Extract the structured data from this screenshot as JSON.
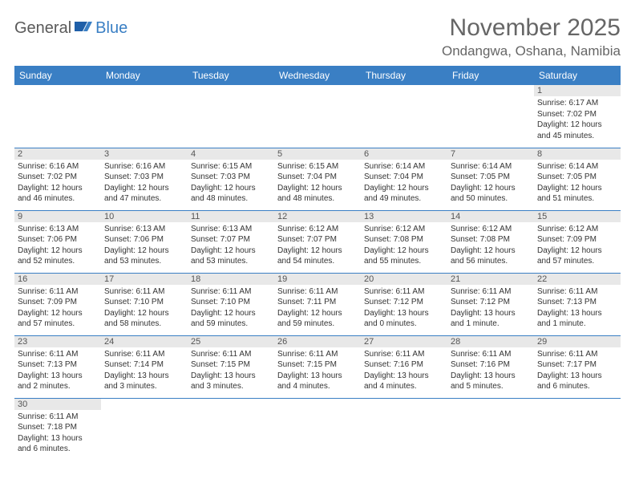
{
  "logo": {
    "part1": "General",
    "part2": "Blue"
  },
  "title": "November 2025",
  "location": "Ondangwa, Oshana, Namibia",
  "colors": {
    "header_bg": "#3a7fc4",
    "header_text": "#ffffff",
    "daynum_bg": "#e8e8e8",
    "border": "#3a7fc4",
    "title_color": "#666666",
    "body_text": "#333333"
  },
  "day_headers": [
    "Sunday",
    "Monday",
    "Tuesday",
    "Wednesday",
    "Thursday",
    "Friday",
    "Saturday"
  ],
  "weeks": [
    [
      {
        "n": "",
        "sr": "",
        "ss": "",
        "dl": ""
      },
      {
        "n": "",
        "sr": "",
        "ss": "",
        "dl": ""
      },
      {
        "n": "",
        "sr": "",
        "ss": "",
        "dl": ""
      },
      {
        "n": "",
        "sr": "",
        "ss": "",
        "dl": ""
      },
      {
        "n": "",
        "sr": "",
        "ss": "",
        "dl": ""
      },
      {
        "n": "",
        "sr": "",
        "ss": "",
        "dl": ""
      },
      {
        "n": "1",
        "sr": "Sunrise: 6:17 AM",
        "ss": "Sunset: 7:02 PM",
        "dl": "Daylight: 12 hours and 45 minutes."
      }
    ],
    [
      {
        "n": "2",
        "sr": "Sunrise: 6:16 AM",
        "ss": "Sunset: 7:02 PM",
        "dl": "Daylight: 12 hours and 46 minutes."
      },
      {
        "n": "3",
        "sr": "Sunrise: 6:16 AM",
        "ss": "Sunset: 7:03 PM",
        "dl": "Daylight: 12 hours and 47 minutes."
      },
      {
        "n": "4",
        "sr": "Sunrise: 6:15 AM",
        "ss": "Sunset: 7:03 PM",
        "dl": "Daylight: 12 hours and 48 minutes."
      },
      {
        "n": "5",
        "sr": "Sunrise: 6:15 AM",
        "ss": "Sunset: 7:04 PM",
        "dl": "Daylight: 12 hours and 48 minutes."
      },
      {
        "n": "6",
        "sr": "Sunrise: 6:14 AM",
        "ss": "Sunset: 7:04 PM",
        "dl": "Daylight: 12 hours and 49 minutes."
      },
      {
        "n": "7",
        "sr": "Sunrise: 6:14 AM",
        "ss": "Sunset: 7:05 PM",
        "dl": "Daylight: 12 hours and 50 minutes."
      },
      {
        "n": "8",
        "sr": "Sunrise: 6:14 AM",
        "ss": "Sunset: 7:05 PM",
        "dl": "Daylight: 12 hours and 51 minutes."
      }
    ],
    [
      {
        "n": "9",
        "sr": "Sunrise: 6:13 AM",
        "ss": "Sunset: 7:06 PM",
        "dl": "Daylight: 12 hours and 52 minutes."
      },
      {
        "n": "10",
        "sr": "Sunrise: 6:13 AM",
        "ss": "Sunset: 7:06 PM",
        "dl": "Daylight: 12 hours and 53 minutes."
      },
      {
        "n": "11",
        "sr": "Sunrise: 6:13 AM",
        "ss": "Sunset: 7:07 PM",
        "dl": "Daylight: 12 hours and 53 minutes."
      },
      {
        "n": "12",
        "sr": "Sunrise: 6:12 AM",
        "ss": "Sunset: 7:07 PM",
        "dl": "Daylight: 12 hours and 54 minutes."
      },
      {
        "n": "13",
        "sr": "Sunrise: 6:12 AM",
        "ss": "Sunset: 7:08 PM",
        "dl": "Daylight: 12 hours and 55 minutes."
      },
      {
        "n": "14",
        "sr": "Sunrise: 6:12 AM",
        "ss": "Sunset: 7:08 PM",
        "dl": "Daylight: 12 hours and 56 minutes."
      },
      {
        "n": "15",
        "sr": "Sunrise: 6:12 AM",
        "ss": "Sunset: 7:09 PM",
        "dl": "Daylight: 12 hours and 57 minutes."
      }
    ],
    [
      {
        "n": "16",
        "sr": "Sunrise: 6:11 AM",
        "ss": "Sunset: 7:09 PM",
        "dl": "Daylight: 12 hours and 57 minutes."
      },
      {
        "n": "17",
        "sr": "Sunrise: 6:11 AM",
        "ss": "Sunset: 7:10 PM",
        "dl": "Daylight: 12 hours and 58 minutes."
      },
      {
        "n": "18",
        "sr": "Sunrise: 6:11 AM",
        "ss": "Sunset: 7:10 PM",
        "dl": "Daylight: 12 hours and 59 minutes."
      },
      {
        "n": "19",
        "sr": "Sunrise: 6:11 AM",
        "ss": "Sunset: 7:11 PM",
        "dl": "Daylight: 12 hours and 59 minutes."
      },
      {
        "n": "20",
        "sr": "Sunrise: 6:11 AM",
        "ss": "Sunset: 7:12 PM",
        "dl": "Daylight: 13 hours and 0 minutes."
      },
      {
        "n": "21",
        "sr": "Sunrise: 6:11 AM",
        "ss": "Sunset: 7:12 PM",
        "dl": "Daylight: 13 hours and 1 minute."
      },
      {
        "n": "22",
        "sr": "Sunrise: 6:11 AM",
        "ss": "Sunset: 7:13 PM",
        "dl": "Daylight: 13 hours and 1 minute."
      }
    ],
    [
      {
        "n": "23",
        "sr": "Sunrise: 6:11 AM",
        "ss": "Sunset: 7:13 PM",
        "dl": "Daylight: 13 hours and 2 minutes."
      },
      {
        "n": "24",
        "sr": "Sunrise: 6:11 AM",
        "ss": "Sunset: 7:14 PM",
        "dl": "Daylight: 13 hours and 3 minutes."
      },
      {
        "n": "25",
        "sr": "Sunrise: 6:11 AM",
        "ss": "Sunset: 7:15 PM",
        "dl": "Daylight: 13 hours and 3 minutes."
      },
      {
        "n": "26",
        "sr": "Sunrise: 6:11 AM",
        "ss": "Sunset: 7:15 PM",
        "dl": "Daylight: 13 hours and 4 minutes."
      },
      {
        "n": "27",
        "sr": "Sunrise: 6:11 AM",
        "ss": "Sunset: 7:16 PM",
        "dl": "Daylight: 13 hours and 4 minutes."
      },
      {
        "n": "28",
        "sr": "Sunrise: 6:11 AM",
        "ss": "Sunset: 7:16 PM",
        "dl": "Daylight: 13 hours and 5 minutes."
      },
      {
        "n": "29",
        "sr": "Sunrise: 6:11 AM",
        "ss": "Sunset: 7:17 PM",
        "dl": "Daylight: 13 hours and 6 minutes."
      }
    ],
    [
      {
        "n": "30",
        "sr": "Sunrise: 6:11 AM",
        "ss": "Sunset: 7:18 PM",
        "dl": "Daylight: 13 hours and 6 minutes."
      },
      {
        "n": "",
        "sr": "",
        "ss": "",
        "dl": ""
      },
      {
        "n": "",
        "sr": "",
        "ss": "",
        "dl": ""
      },
      {
        "n": "",
        "sr": "",
        "ss": "",
        "dl": ""
      },
      {
        "n": "",
        "sr": "",
        "ss": "",
        "dl": ""
      },
      {
        "n": "",
        "sr": "",
        "ss": "",
        "dl": ""
      },
      {
        "n": "",
        "sr": "",
        "ss": "",
        "dl": ""
      }
    ]
  ]
}
